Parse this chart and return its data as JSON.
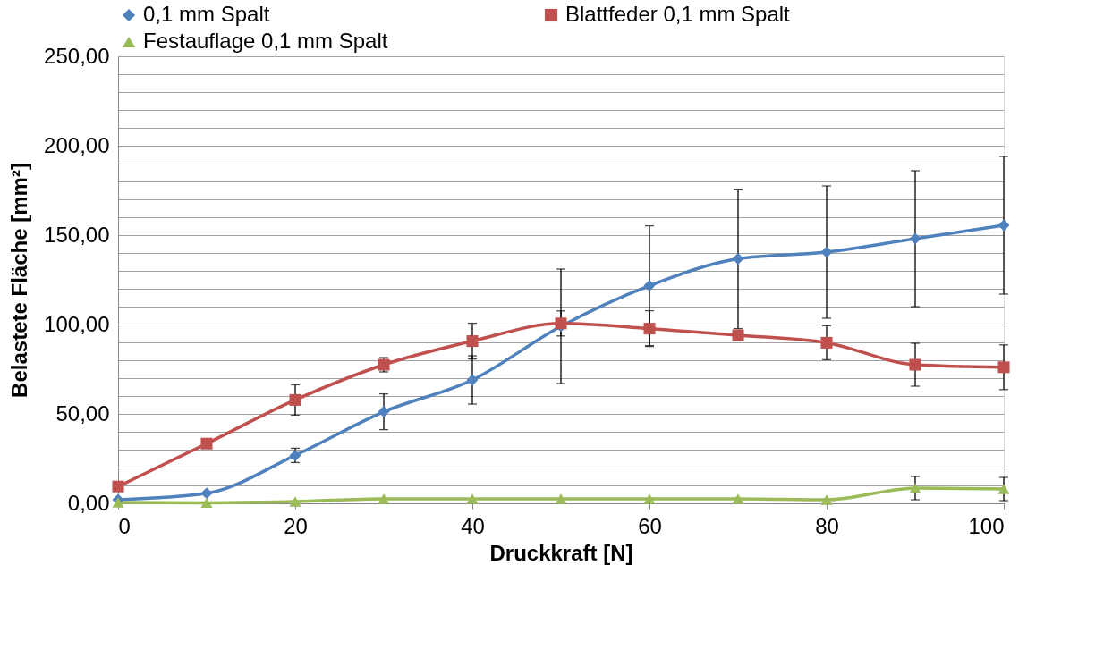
{
  "chart_data": {
    "type": "line",
    "xlabel": "Druckkraft [N]",
    "ylabel": "Belastete Fläche [mm²]",
    "x": [
      0,
      10,
      20,
      30,
      40,
      50,
      60,
      70,
      80,
      90,
      100
    ],
    "series": [
      {
        "name": "0,1 mm Spalt",
        "color": "#4f81bd",
        "marker": "diamond",
        "values": [
          2,
          5.6,
          26.8,
          51.2,
          69,
          99,
          121.7,
          136.7,
          140.5,
          148,
          155.5
        ],
        "errors": [
          null,
          null,
          4,
          10,
          13.5,
          32,
          33.5,
          39,
          37,
          38,
          38.5
        ]
      },
      {
        "name": "Blattfeder 0,1 mm Spalt",
        "color": "#c0504d",
        "marker": "square",
        "values": [
          9.4,
          33.4,
          57.8,
          77.5,
          90.7,
          100.6,
          97.7,
          94,
          89.8,
          77.5,
          76.1
        ],
        "errors": [
          null,
          null,
          8.5,
          4,
          10,
          7,
          10,
          null,
          9.5,
          12,
          12.5
        ]
      },
      {
        "name": "Festauflage 0,1 mm Spalt",
        "color": "#9bbb59",
        "marker": "triangle",
        "values": [
          0.5,
          0.3,
          1,
          2.5,
          2.5,
          2.5,
          2.5,
          2.5,
          2,
          8.5,
          8
        ],
        "errors": [
          null,
          null,
          null,
          null,
          null,
          null,
          null,
          null,
          null,
          6.5,
          6.5
        ]
      }
    ],
    "xlim": [
      0,
      100
    ],
    "xticks": [
      0,
      20,
      40,
      60,
      80,
      100
    ],
    "ylim": [
      0,
      250
    ],
    "yticks": [
      {
        "value": 0,
        "label": "0,00"
      },
      {
        "value": 10,
        "label": null
      },
      {
        "value": 20,
        "label": null
      },
      {
        "value": 30,
        "label": null
      },
      {
        "value": 40,
        "label": null
      },
      {
        "value": 50,
        "label": "50,00"
      },
      {
        "value": 60,
        "label": null
      },
      {
        "value": 70,
        "label": null
      },
      {
        "value": 80,
        "label": null
      },
      {
        "value": 90,
        "label": null
      },
      {
        "value": 100,
        "label": "100,00"
      },
      {
        "value": 110,
        "label": null
      },
      {
        "value": 120,
        "label": null
      },
      {
        "value": 130,
        "label": null
      },
      {
        "value": 140,
        "label": null
      },
      {
        "value": 150,
        "label": "150,00"
      },
      {
        "value": 160,
        "label": null
      },
      {
        "value": 170,
        "label": null
      },
      {
        "value": 180,
        "label": null
      },
      {
        "value": 190,
        "label": null
      },
      {
        "value": 200,
        "label": "200,00"
      },
      {
        "value": 210,
        "label": null
      },
      {
        "value": 220,
        "label": null
      },
      {
        "value": 230,
        "label": null
      },
      {
        "value": 240,
        "label": null
      },
      {
        "value": 250,
        "label": "250,00"
      }
    ],
    "grid": "y",
    "legend": "top",
    "line_style": "solid"
  }
}
